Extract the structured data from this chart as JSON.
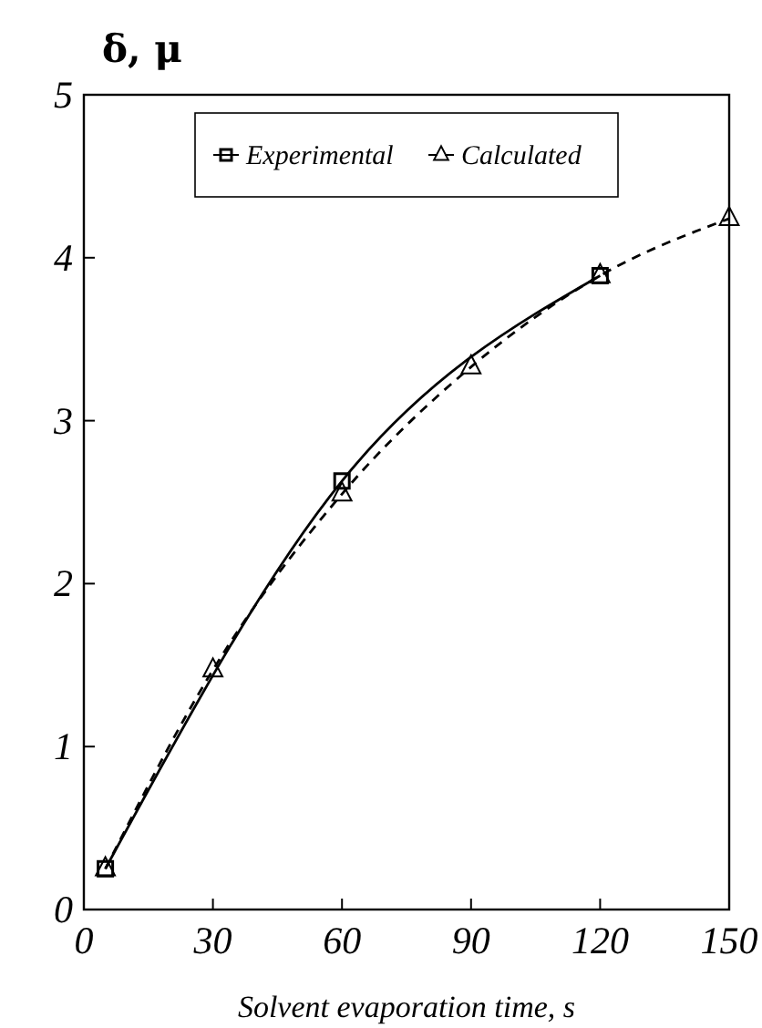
{
  "chart_data": {
    "type": "line",
    "ylabel": "δ, μ",
    "xlabel": "Solvent evaporation time, s",
    "xlim": [
      0,
      150
    ],
    "xticks": [
      0,
      30,
      60,
      90,
      120,
      150
    ],
    "ylim": [
      0,
      5
    ],
    "yticks": [
      0,
      1,
      2,
      3,
      4,
      5
    ],
    "legend": "top",
    "grid": false,
    "series": [
      {
        "name": "Experimental",
        "color": "#000000",
        "marker": "square",
        "line_style": "solid",
        "x": [
          5,
          60,
          120
        ],
        "values": [
          0.25,
          2.63,
          3.89
        ]
      },
      {
        "name": "Calculated",
        "color": "#000000",
        "marker": "triangle",
        "line_style": "dashed",
        "x": [
          5,
          30,
          60,
          90,
          120,
          150
        ],
        "values": [
          0.25,
          1.47,
          2.55,
          3.33,
          3.89,
          4.24
        ]
      }
    ]
  }
}
